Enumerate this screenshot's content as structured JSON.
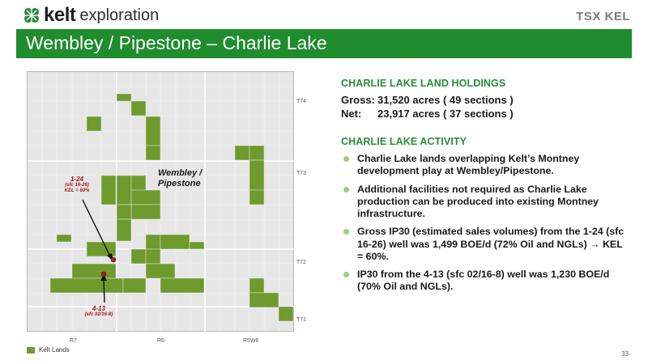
{
  "header": {
    "brand": "kelt",
    "brand_sub": "exploration",
    "tsx_label": "TSX KEL"
  },
  "slide_title": "Wembley / Pipestone – Charlie Lake",
  "map": {
    "township_labels": [
      "T74",
      "T73",
      "T72",
      "T71"
    ],
    "range_labels": [
      "R7",
      "R6",
      "R5W6"
    ],
    "area_label_line1": "Wembley /",
    "area_label_line2": "Pipestone",
    "well_1": {
      "line1": "1-24",
      "line2": "(sfc 16-26)",
      "line3": "KEL = 60%"
    },
    "well_2": {
      "line1": "4-13",
      "line2": "(sfc 02/16-8)"
    },
    "legend_label": "Kelt Lands",
    "colors": {
      "land": "#6f9a2d",
      "grid": "#ffffff",
      "well": "#b11b1b",
      "callout": "#a3171b"
    }
  },
  "holdings": {
    "heading": "CHARLIE LAKE LAND HOLDINGS",
    "gross_label": "Gross:",
    "gross_value": "31,520 acres ( 49 sections )",
    "net_label": "Net:",
    "net_value": "23,917 acres ( 37 sections )"
  },
  "activity": {
    "heading": "CHARLIE LAKE ACTIVITY",
    "bullets": [
      "Charlie Lake lands overlapping Kelt’s Montney development play at Wembley/Pipestone.",
      "Additional facilities not required as Charlie Lake production can be produced into existing Montney infrastructure.",
      "Gross IP30 (estimated sales volumes) from the 1-24 (sfc 16-26) well was 1,499 BOE/d (72% Oil and NGLs) → KEL = 60%.",
      "IP30 from the 4-13 (sfc 02/16-8) well was 1,230 BOE/d (70% Oil and NGLs)."
    ]
  },
  "page_number": "33",
  "accent_colors": {
    "title_bar": "#1f8c2e",
    "heading": "#2a8a3a",
    "bullet": "#9ed07a"
  }
}
